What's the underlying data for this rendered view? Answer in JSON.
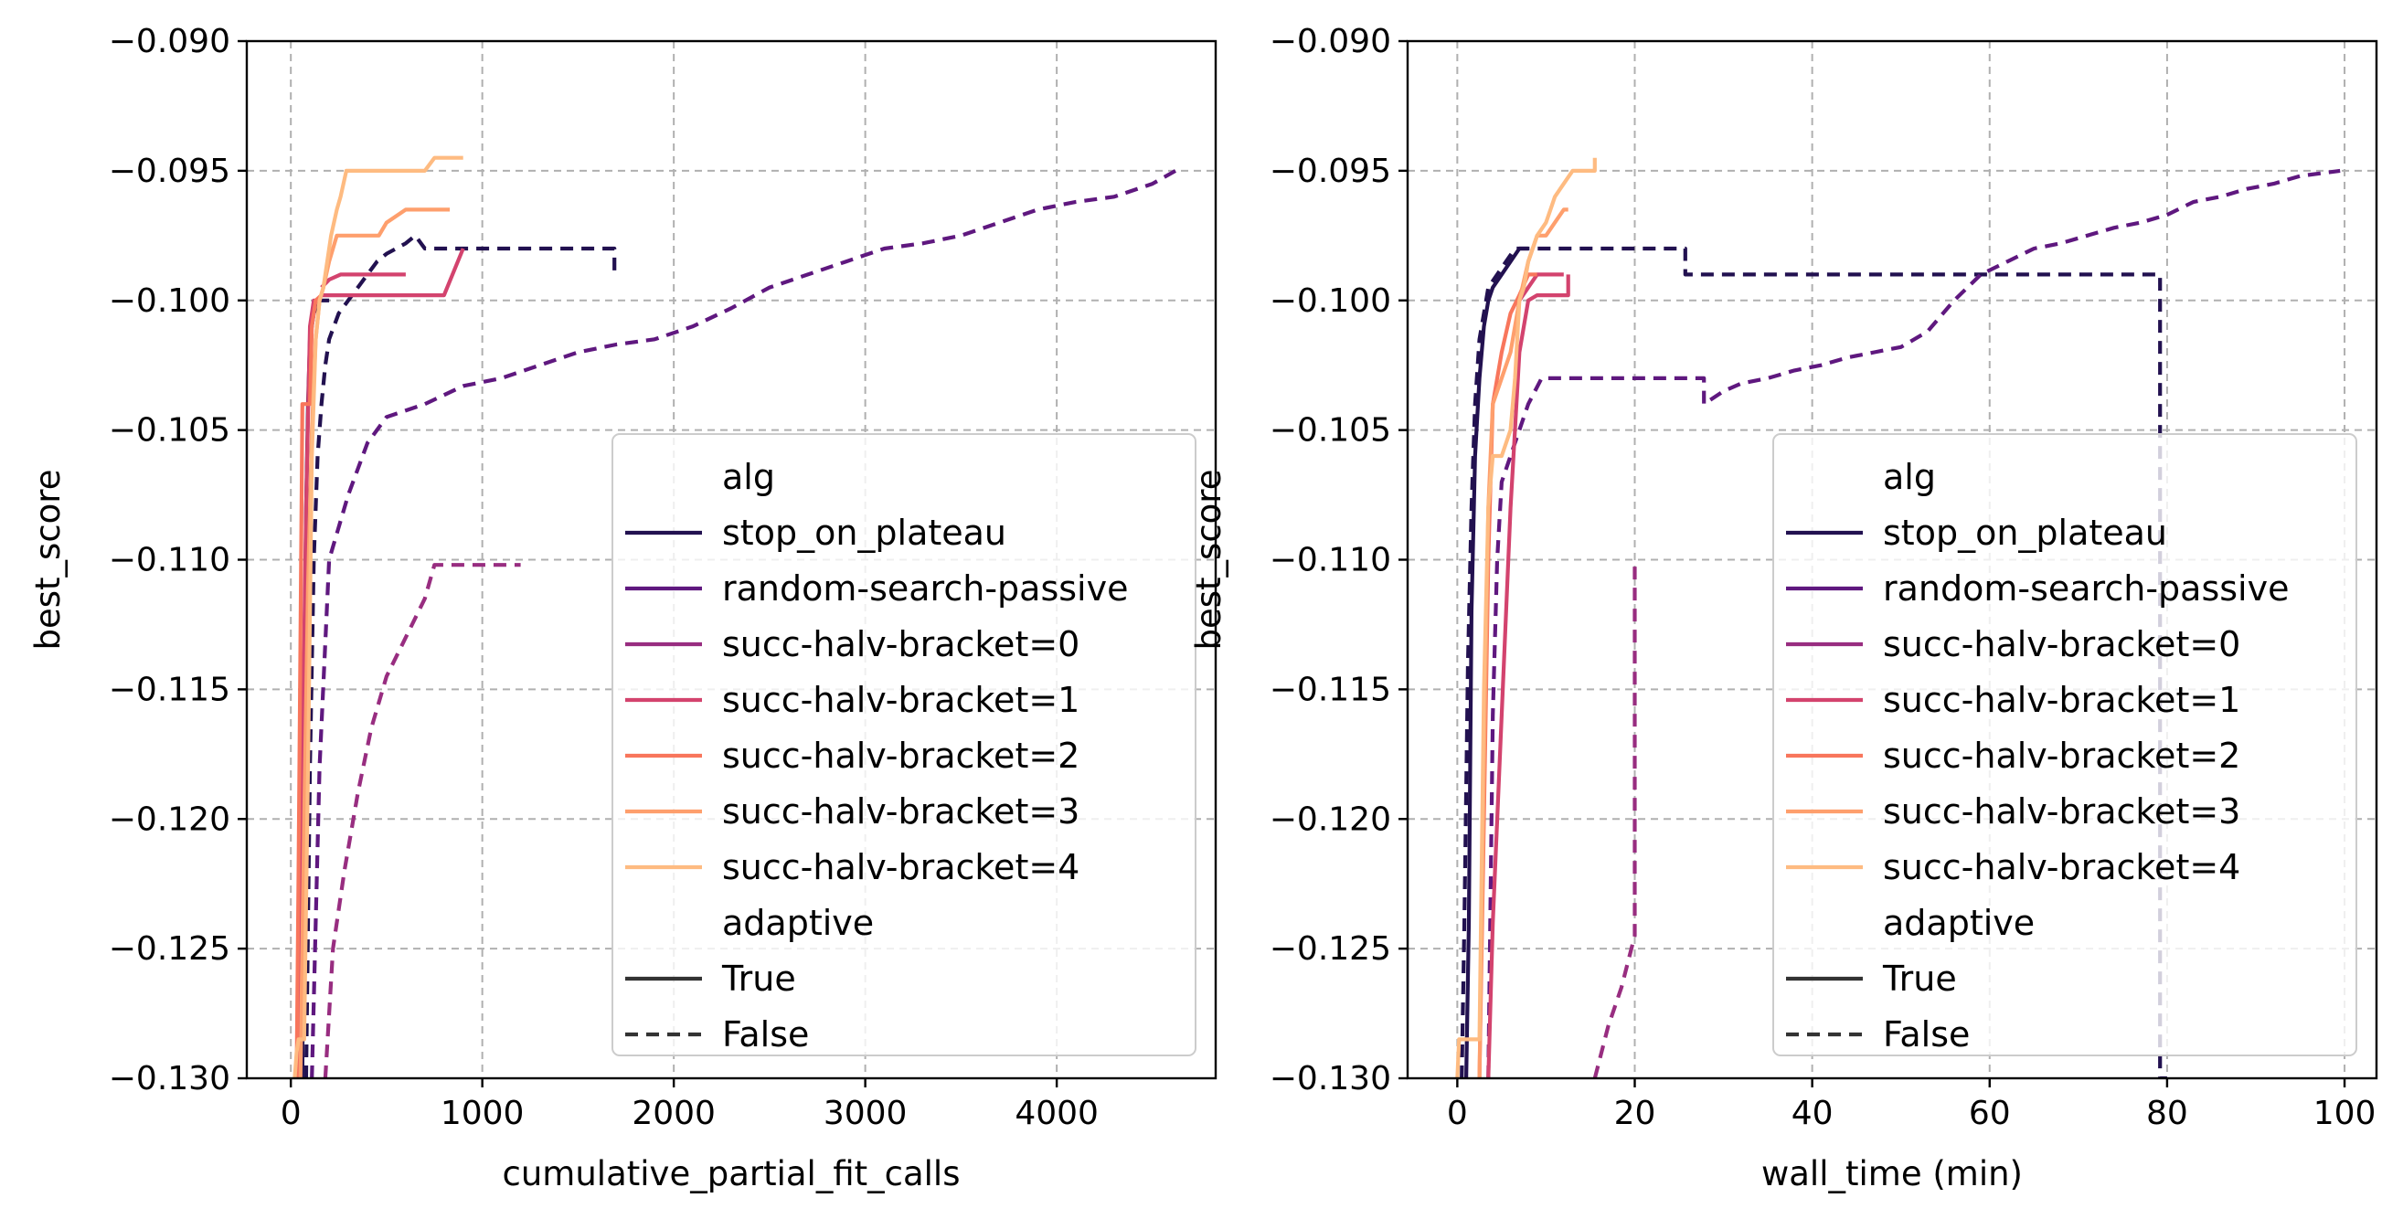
{
  "chart_data": [
    {
      "type": "line",
      "xlabel": "cumulative_partial_fit_calls",
      "ylabel": "best_score",
      "xlim": [
        -230,
        4830
      ],
      "ylim": [
        -0.13,
        -0.09
      ],
      "xticks": [
        0,
        1000,
        2000,
        3000,
        4000
      ],
      "yticks": [
        -0.13,
        -0.125,
        -0.12,
        -0.115,
        -0.11,
        -0.105,
        -0.1,
        -0.095,
        -0.09
      ],
      "grid": true,
      "legend_position": "lower-right",
      "series": [
        {
          "alg": "stop_on_plateau",
          "adaptive": "True",
          "x": [
            60,
            70,
            80,
            90,
            100,
            120,
            150,
            200
          ],
          "y": [
            -0.13,
            -0.116,
            -0.108,
            -0.104,
            -0.1015,
            -0.1005,
            -0.1,
            -0.1
          ]
        },
        {
          "alg": "stop_on_plateau",
          "adaptive": "False",
          "x": [
            80,
            100,
            120,
            140,
            160,
            180,
            200,
            250,
            300,
            350,
            400,
            450,
            500,
            550,
            600,
            650,
            700,
            800,
            1000,
            1200,
            1400,
            1690,
            1690
          ],
          "y": [
            -0.13,
            -0.118,
            -0.11,
            -0.106,
            -0.104,
            -0.1025,
            -0.1015,
            -0.1005,
            -0.1,
            -0.0995,
            -0.099,
            -0.0985,
            -0.0982,
            -0.098,
            -0.0978,
            -0.0975,
            -0.098,
            -0.098,
            -0.098,
            -0.098,
            -0.098,
            -0.098,
            -0.099
          ]
        },
        {
          "alg": "random-search-passive",
          "adaptive": "False",
          "x": [
            110,
            150,
            200,
            300,
            400,
            500,
            700,
            900,
            1100,
            1300,
            1500,
            1700,
            1900,
            2100,
            2300,
            2500,
            2700,
            2900,
            3100,
            3300,
            3500,
            3700,
            3900,
            4100,
            4300,
            4500,
            4620
          ],
          "y": [
            -0.13,
            -0.118,
            -0.11,
            -0.1075,
            -0.1055,
            -0.1045,
            -0.104,
            -0.1033,
            -0.103,
            -0.1025,
            -0.102,
            -0.1017,
            -0.1015,
            -0.101,
            -0.1003,
            -0.0995,
            -0.099,
            -0.0985,
            -0.098,
            -0.0978,
            -0.0975,
            -0.097,
            -0.0965,
            -0.0962,
            -0.096,
            -0.0955,
            -0.095
          ]
        },
        {
          "alg": "succ-halv-bracket=0",
          "adaptive": "False",
          "x": [
            180,
            220,
            280,
            350,
            420,
            500,
            600,
            700,
            750,
            900,
            1000,
            1100,
            1200
          ],
          "y": [
            -0.13,
            -0.125,
            -0.122,
            -0.119,
            -0.1165,
            -0.1145,
            -0.113,
            -0.1115,
            -0.1102,
            -0.1102,
            -0.1102,
            -0.1102,
            -0.1102
          ]
        },
        {
          "alg": "succ-halv-bracket=1",
          "adaptive": "True",
          "x": [
            40,
            60,
            80,
            100,
            120,
            140,
            160,
            200,
            260,
            300,
            500,
            600,
            800,
            900
          ],
          "y": [
            -0.13,
            -0.118,
            -0.108,
            -0.101,
            -0.1,
            -0.1,
            -0.0998,
            -0.0998,
            -0.0998,
            -0.0998,
            -0.0998,
            -0.0998,
            -0.0998,
            -0.098
          ]
        },
        {
          "alg": "succ-halv-bracket=1",
          "adaptive": "True",
          "x": [
            160,
            200,
            260,
            300,
            400,
            500,
            600
          ],
          "y": [
            -0.0995,
            -0.0992,
            -0.099,
            -0.099,
            -0.099,
            -0.099,
            -0.099
          ]
        },
        {
          "alg": "succ-halv-bracket=2",
          "adaptive": "True",
          "x": [
            30,
            40,
            50,
            60,
            80,
            100,
            110,
            120,
            130,
            160
          ],
          "y": [
            -0.13,
            -0.122,
            -0.113,
            -0.104,
            -0.104,
            -0.104,
            -0.101,
            -0.1005,
            -0.1,
            -0.0998
          ]
        },
        {
          "alg": "succ-halv-bracket=3",
          "adaptive": "True",
          "x": [
            50,
            70,
            90,
            110,
            130,
            150,
            170,
            200,
            240,
            300,
            460,
            500,
            600,
            700,
            830
          ],
          "y": [
            -0.13,
            -0.12,
            -0.111,
            -0.105,
            -0.1015,
            -0.1,
            -0.0995,
            -0.0985,
            -0.0975,
            -0.0975,
            -0.0975,
            -0.097,
            -0.0965,
            -0.0965,
            -0.0965
          ]
        },
        {
          "alg": "succ-halv-bracket=4",
          "adaptive": "True",
          "x": [
            20,
            30,
            40,
            50,
            70,
            90,
            110,
            130,
            150,
            170,
            190,
            210,
            240,
            260,
            290,
            320,
            400,
            500,
            600,
            700,
            750,
            800,
            900
          ],
          "y": [
            -0.13,
            -0.129,
            -0.1285,
            -0.1285,
            -0.1285,
            -0.118,
            -0.106,
            -0.1015,
            -0.1,
            -0.0995,
            -0.0985,
            -0.0975,
            -0.0965,
            -0.096,
            -0.095,
            -0.095,
            -0.095,
            -0.095,
            -0.095,
            -0.095,
            -0.0945,
            -0.0945,
            -0.0945
          ]
        }
      ]
    },
    {
      "type": "line",
      "xlabel": "wall_time (min)",
      "ylabel": "best_score",
      "xlim": [
        -5.6,
        103.6
      ],
      "ylim": [
        -0.13,
        -0.09
      ],
      "xticks": [
        0,
        20,
        40,
        60,
        80,
        100
      ],
      "yticks": [
        -0.13,
        -0.125,
        -0.12,
        -0.115,
        -0.11,
        -0.105,
        -0.1,
        -0.095,
        -0.09
      ],
      "grid": true,
      "legend_position": "lower-right",
      "series": [
        {
          "alg": "stop_on_plateau",
          "adaptive": "True",
          "x": [
            1.0,
            1.3,
            1.6,
            2.0,
            2.5,
            3.0,
            3.5,
            4.0,
            5.0,
            6.0,
            7.0,
            8.0
          ],
          "y": [
            -0.13,
            -0.124,
            -0.112,
            -0.106,
            -0.103,
            -0.101,
            -0.1,
            -0.0995,
            -0.099,
            -0.0985,
            -0.098,
            -0.098
          ]
        },
        {
          "alg": "stop_on_plateau",
          "adaptive": "False",
          "x": [
            0.5,
            0.8,
            1.2,
            1.6,
            2.0,
            2.5,
            3.0,
            3.5,
            4.5,
            5.5,
            6.5,
            8.0,
            10.0,
            15.0,
            20.0,
            25.7,
            25.7,
            40.0,
            60.0,
            79.2,
            79.2,
            80.0
          ],
          "y": [
            -0.13,
            -0.124,
            -0.114,
            -0.108,
            -0.104,
            -0.1015,
            -0.1005,
            -0.0995,
            -0.099,
            -0.0985,
            -0.098,
            -0.098,
            -0.098,
            -0.098,
            -0.098,
            -0.098,
            -0.099,
            -0.099,
            -0.099,
            -0.099,
            -0.13,
            -0.13
          ]
        },
        {
          "alg": "random-search-passive",
          "adaptive": "False",
          "x": [
            3.5,
            4.0,
            4.5,
            5.0,
            6.0,
            7.0,
            8.0,
            9.5,
            15.0,
            20.0,
            27.8,
            27.8,
            30.0,
            32.0,
            35.0,
            38.0,
            41.0,
            44.0,
            47.0,
            50.0,
            53.0,
            56.0,
            59.0,
            62.0,
            65.0,
            68.0,
            71.0,
            74.0,
            77.0,
            80.0,
            83.0,
            86.0,
            89.0,
            92.0,
            95.0,
            99.5
          ],
          "y": [
            -0.13,
            -0.116,
            -0.11,
            -0.107,
            -0.106,
            -0.105,
            -0.104,
            -0.103,
            -0.103,
            -0.103,
            -0.103,
            -0.104,
            -0.1035,
            -0.1032,
            -0.103,
            -0.1027,
            -0.1025,
            -0.1022,
            -0.102,
            -0.1018,
            -0.1012,
            -0.1,
            -0.099,
            -0.0985,
            -0.098,
            -0.0978,
            -0.0975,
            -0.0972,
            -0.097,
            -0.0967,
            -0.0962,
            -0.096,
            -0.0957,
            -0.0955,
            -0.0952,
            -0.095
          ]
        },
        {
          "alg": "succ-halv-bracket=0",
          "adaptive": "False",
          "x": [
            15.5,
            17.0,
            18.5,
            20.0,
            20.0,
            20.2
          ],
          "y": [
            -0.13,
            -0.128,
            -0.1265,
            -0.1245,
            -0.1102,
            -0.1102
          ]
        },
        {
          "alg": "succ-halv-bracket=1",
          "adaptive": "True",
          "x": [
            3.5,
            4.0,
            5.0,
            6.0,
            7.0,
            8.0,
            9.0,
            10.0,
            12.0,
            12.5,
            12.5
          ],
          "y": [
            -0.13,
            -0.124,
            -0.116,
            -0.108,
            -0.102,
            -0.1,
            -0.0998,
            -0.0998,
            -0.0998,
            -0.0998,
            -0.099
          ]
        },
        {
          "alg": "succ-halv-bracket=1",
          "adaptive": "True",
          "x": [
            7.0,
            8.0,
            9.0,
            10.0,
            11.0,
            12.0
          ],
          "y": [
            -0.1,
            -0.0995,
            -0.099,
            -0.099,
            -0.099,
            -0.099
          ]
        },
        {
          "alg": "succ-halv-bracket=2",
          "adaptive": "True",
          "x": [
            2.5,
            3.0,
            3.5,
            4.0,
            5.0,
            6.0,
            7.0,
            8.0,
            9.0
          ],
          "y": [
            -0.13,
            -0.12,
            -0.11,
            -0.104,
            -0.102,
            -0.1005,
            -0.0998,
            -0.099,
            -0.099
          ]
        },
        {
          "alg": "succ-halv-bracket=3",
          "adaptive": "True",
          "x": [
            2.5,
            3.0,
            3.5,
            4.0,
            5.0,
            6.0,
            7.0,
            8.0,
            9.0,
            10.0,
            11.0,
            12.0,
            12.5
          ],
          "y": [
            -0.13,
            -0.118,
            -0.108,
            -0.104,
            -0.103,
            -0.102,
            -0.1,
            -0.0985,
            -0.0975,
            -0.0975,
            -0.097,
            -0.0965,
            -0.0965
          ]
        },
        {
          "alg": "succ-halv-bracket=4",
          "adaptive": "True",
          "x": [
            0.0,
            0.2,
            1.0,
            2.0,
            2.5,
            3.0,
            3.5,
            4.0,
            5.0,
            6.0,
            6.5,
            7.0,
            7.5,
            8.0,
            9.0,
            10.0,
            10.5,
            11.0,
            12.0,
            13.0,
            14.0,
            15.0,
            15.5,
            15.5
          ],
          "y": [
            -0.13,
            -0.1285,
            -0.1285,
            -0.1285,
            -0.1285,
            -0.115,
            -0.108,
            -0.106,
            -0.106,
            -0.105,
            -0.103,
            -0.1,
            -0.0995,
            -0.0985,
            -0.0975,
            -0.097,
            -0.0965,
            -0.096,
            -0.0955,
            -0.095,
            -0.095,
            -0.095,
            -0.095,
            -0.0945
          ]
        }
      ]
    }
  ],
  "legend": {
    "hue_title": "alg",
    "hue_entries": [
      {
        "label": "stop_on_plateau",
        "color": "#221150"
      },
      {
        "label": "random-search-passive",
        "color": "#5f187f"
      },
      {
        "label": "succ-halv-bracket=0",
        "color": "#982d80"
      },
      {
        "label": "succ-halv-bracket=1",
        "color": "#d3436e"
      },
      {
        "label": "succ-halv-bracket=2",
        "color": "#f8765c"
      },
      {
        "label": "succ-halv-bracket=3",
        "color": "#fe9f6d"
      },
      {
        "label": "succ-halv-bracket=4",
        "color": "#febb81"
      }
    ],
    "style_title": "adaptive",
    "style_entries": [
      {
        "label": "True",
        "dash": "solid",
        "color": "#333333"
      },
      {
        "label": "False",
        "dash": "dashed",
        "color": "#333333"
      }
    ]
  }
}
